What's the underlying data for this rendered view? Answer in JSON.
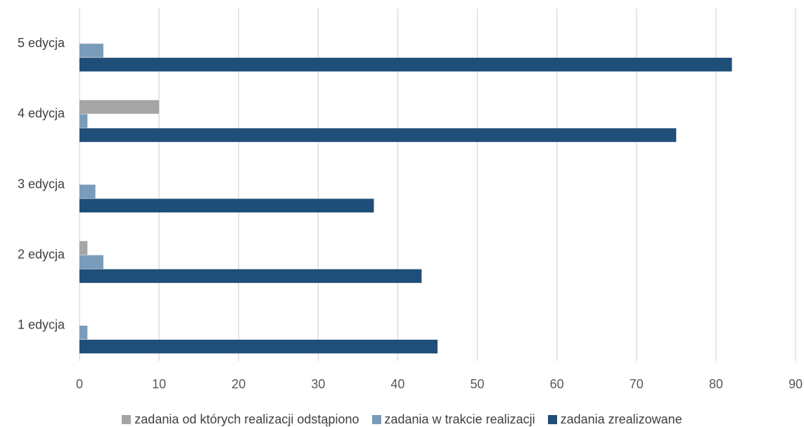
{
  "chart_data": {
    "type": "bar",
    "orientation": "horizontal",
    "categories": [
      "1 edycja",
      "2 edycja",
      "3 edycja",
      "4 edycja",
      "5 edycja"
    ],
    "series": [
      {
        "name": "zadania od których realizacji odstąpiono",
        "color": "#a5a5a5",
        "values": [
          0,
          1,
          0,
          10,
          0
        ]
      },
      {
        "name": "zadania w trakcie realizacji",
        "color": "#7a9cba",
        "values": [
          1,
          3,
          2,
          1,
          3
        ]
      },
      {
        "name": "zadania zrealizowane",
        "color": "#1f4e79",
        "values": [
          45,
          43,
          37,
          75,
          82
        ]
      }
    ],
    "xlim": [
      0,
      90
    ],
    "xticks": [
      "0",
      "10",
      "20",
      "30",
      "40",
      "50",
      "60",
      "70",
      "80",
      "90"
    ],
    "grid": true,
    "legend_position": "bottom",
    "title": "",
    "xlabel": "",
    "ylabel": ""
  }
}
